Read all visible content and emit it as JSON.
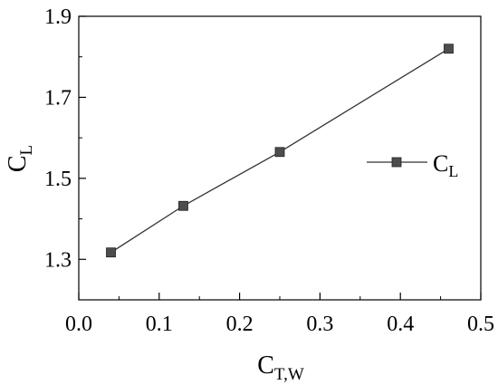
{
  "chart_data": {
    "type": "line",
    "xlabel": {
      "main": "C",
      "sub": "T,W"
    },
    "ylabel": {
      "main": "C",
      "sub": "L"
    },
    "xlim": [
      0.0,
      0.5
    ],
    "ylim": [
      1.2,
      1.9
    ],
    "xticks": [
      "0.0",
      "0.1",
      "0.2",
      "0.3",
      "0.4",
      "0.5"
    ],
    "yticks": [
      "1.3",
      "1.5",
      "1.7",
      "1.9"
    ],
    "grid": false,
    "legend_position": "right",
    "series": [
      {
        "name": {
          "main": "C",
          "sub": "L"
        },
        "marker": "square",
        "color": "#333333",
        "x": [
          0.04,
          0.13,
          0.25,
          0.46
        ],
        "y": [
          1.317,
          1.432,
          1.565,
          1.82
        ]
      }
    ]
  }
}
